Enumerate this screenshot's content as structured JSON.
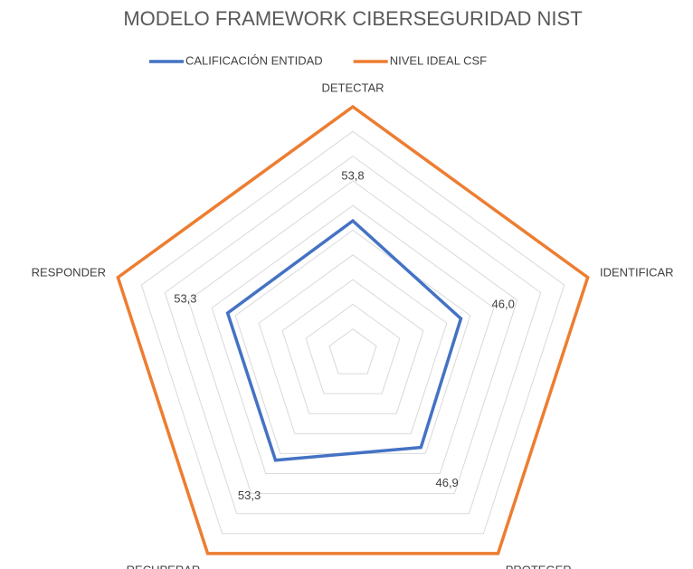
{
  "chart_data": {
    "type": "radar",
    "title": "MODELO FRAMEWORK CIBERSEGURIDAD  NIST",
    "categories": [
      "DETECTAR",
      "IDENTIFICAR",
      "PROTEGER",
      "RECUPERAR",
      "RESPONDER"
    ],
    "series": [
      {
        "name": "CALIFICACIÓN ENTIDAD",
        "color": "#4472c4",
        "values": [
          53.8,
          46.0,
          46.9,
          53.3,
          53.3
        ],
        "value_labels": [
          "53,8",
          "46,0",
          "46,9",
          "53,3",
          "53,3"
        ]
      },
      {
        "name": "NIVEL IDEAL CSF",
        "color": "#ed7d31",
        "values": [
          100,
          100,
          100,
          100,
          100
        ]
      }
    ],
    "ylim": [
      0,
      100
    ],
    "yticks": [
      0,
      10,
      20,
      30,
      40,
      50,
      60,
      70,
      80,
      90,
      100
    ],
    "grid": true,
    "legend": "top"
  }
}
